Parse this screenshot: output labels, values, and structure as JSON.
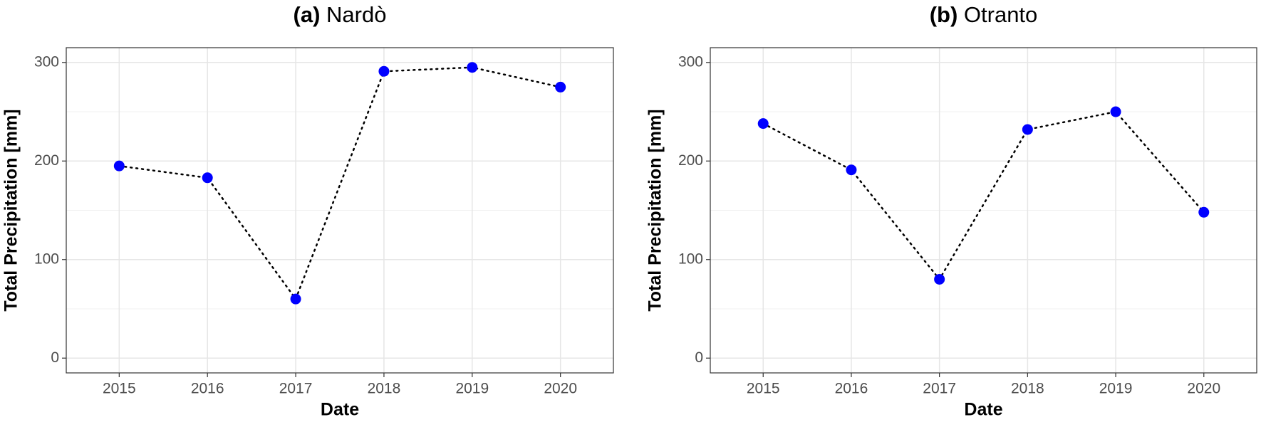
{
  "chart_data": [
    {
      "type": "line",
      "panel": "(a)",
      "title": "Nardò",
      "xlabel": "Date",
      "ylabel": "Total Precipitation [mm]",
      "x": [
        2015,
        2016,
        2017,
        2018,
        2019,
        2020
      ],
      "series": [
        {
          "values": [
            195,
            183,
            60,
            291,
            295,
            275
          ],
          "color": "#0000ff",
          "line_color": "#000000"
        }
      ],
      "xlim": [
        2014.4,
        2020.6
      ],
      "xticks": [
        2015,
        2016,
        2017,
        2018,
        2019,
        2020
      ],
      "ylim": [
        -15,
        315
      ],
      "yticks": [
        0,
        100,
        200,
        300
      ],
      "yminor": [
        50,
        150,
        250
      ],
      "grid": true
    },
    {
      "type": "line",
      "panel": "(b)",
      "title": "Otranto",
      "xlabel": "Date",
      "ylabel": "Total Precipitation [mm]",
      "x": [
        2015,
        2016,
        2017,
        2018,
        2019,
        2020
      ],
      "series": [
        {
          "values": [
            238,
            191,
            80,
            232,
            250,
            148
          ],
          "color": "#0000ff",
          "line_color": "#000000"
        }
      ],
      "xlim": [
        2014.4,
        2020.6
      ],
      "xticks": [
        2015,
        2016,
        2017,
        2018,
        2019,
        2020
      ],
      "ylim": [
        -15,
        315
      ],
      "yticks": [
        0,
        100,
        200,
        300
      ],
      "yminor": [
        50,
        150,
        250
      ],
      "grid": true
    }
  ]
}
